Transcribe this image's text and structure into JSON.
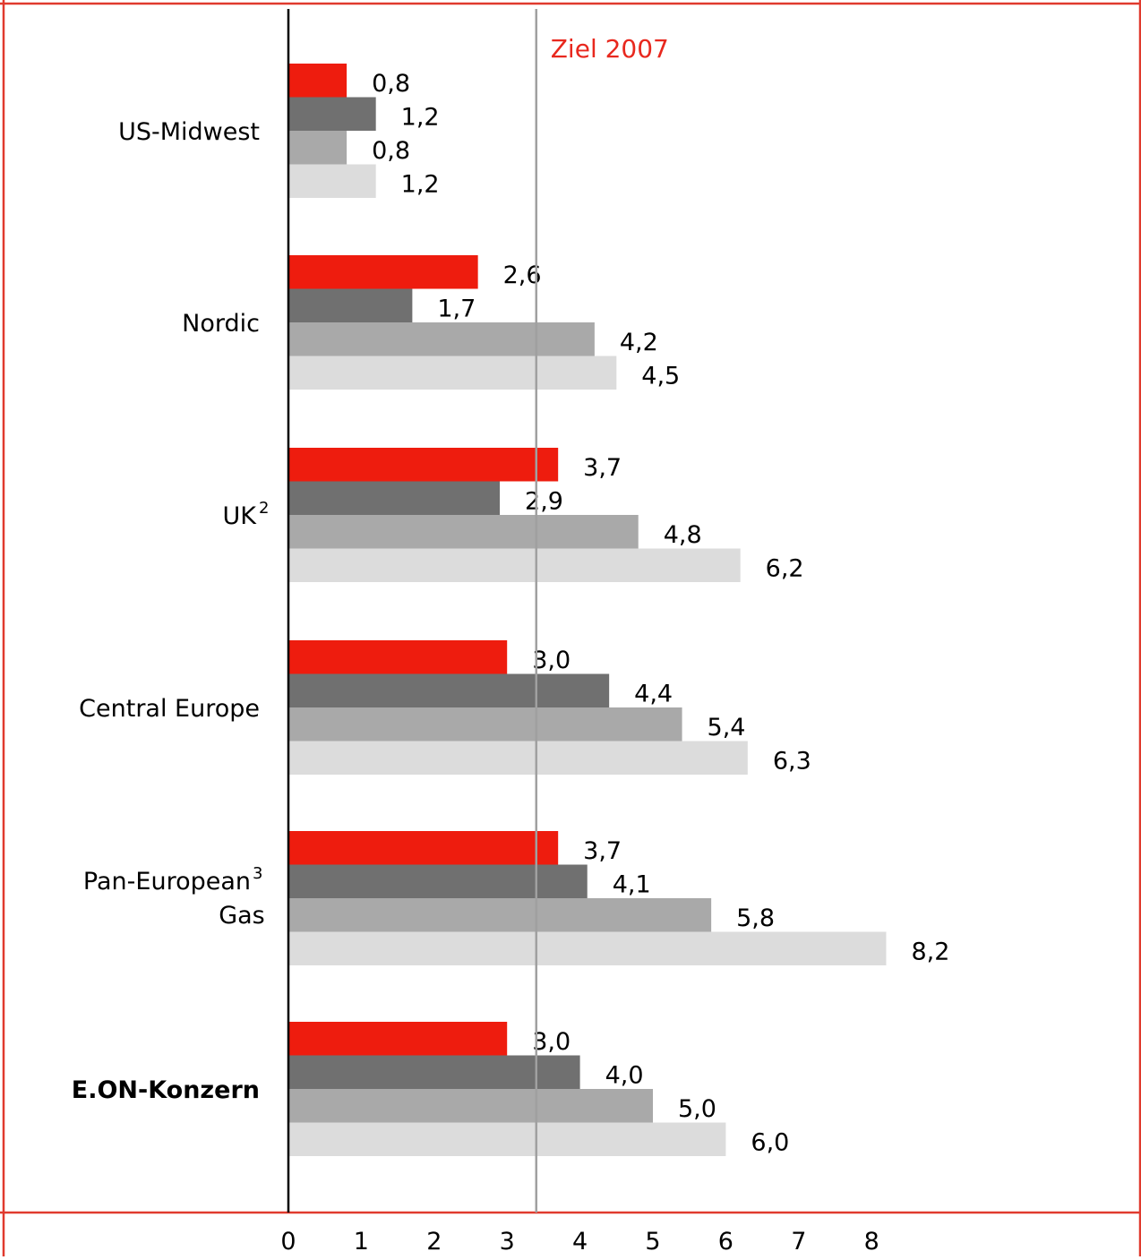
{
  "chart_data": {
    "type": "bar",
    "orientation": "horizontal",
    "title": "",
    "xlabel": "",
    "ylabel": "",
    "xlim": [
      0,
      8.5
    ],
    "x_ticks": [
      "0",
      "1",
      "2",
      "3",
      "4",
      "5",
      "6",
      "7",
      "8"
    ],
    "grid": false,
    "legend": "none",
    "categories": [
      {
        "label": "US-Midwest",
        "sup": "",
        "label2": "",
        "bold": false
      },
      {
        "label": "Nordic",
        "sup": "",
        "label2": "",
        "bold": false
      },
      {
        "label": "UK",
        "sup": "2",
        "label2": "",
        "bold": false
      },
      {
        "label": "Central Europe",
        "sup": "",
        "label2": "",
        "bold": false
      },
      {
        "label": "Pan-European",
        "sup": "3",
        "label2": "Gas",
        "bold": false
      },
      {
        "label": "E.ON-Konzern",
        "sup": "",
        "label2": "",
        "bold": true
      }
    ],
    "series": [
      {
        "color": "#ee1c0e",
        "values": [
          0.8,
          2.6,
          3.7,
          3.0,
          3.7,
          3.0
        ],
        "labels": [
          "0,8",
          "2,6",
          "3,7",
          "3,0",
          "3,7",
          "3,0"
        ]
      },
      {
        "color": "#707070",
        "values": [
          1.2,
          1.7,
          2.9,
          4.4,
          4.1,
          4.0
        ],
        "labels": [
          "1,2",
          "1,7",
          "2,9",
          "4,4",
          "4,1",
          "4,0"
        ]
      },
      {
        "color": "#a9a9a9",
        "values": [
          0.8,
          4.2,
          4.8,
          5.4,
          5.8,
          5.0
        ],
        "labels": [
          "0,8",
          "4,2",
          "4,8",
          "5,4",
          "5,8",
          "5,0"
        ]
      },
      {
        "color": "#dcdcdc",
        "values": [
          1.2,
          4.5,
          6.2,
          6.3,
          8.2,
          6.0
        ],
        "labels": [
          "1,2",
          "4,5",
          "6,2",
          "6,3",
          "8,2",
          "6,0"
        ]
      }
    ],
    "reference_line": {
      "value": 3.4,
      "label": "Ziel 2007",
      "label_color": "#e8281e",
      "line_color": "#a0a0a0"
    },
    "frame_color": "#e03a2e"
  }
}
